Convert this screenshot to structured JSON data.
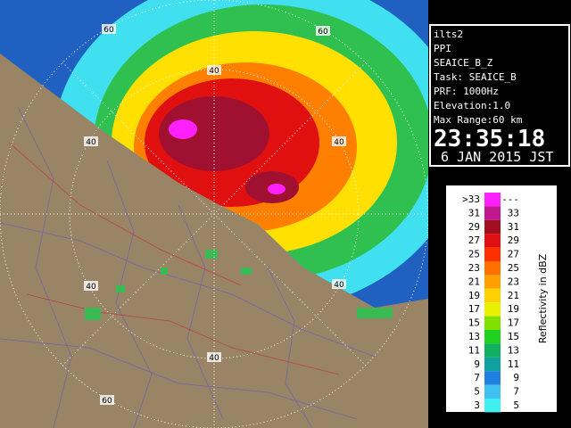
{
  "station": "ilts2",
  "scan_mode": "PPI",
  "product": "SEAICE_B_Z",
  "task": "Task: SEAICE_B",
  "prf": "PRF: 1000Hz",
  "elevation": "Elevation:1.0",
  "max_range": "Max Range:60 km",
  "time": "23:35:18",
  "date": "6 JAN 2015 JST",
  "range_labels": [
    "60",
    "40",
    "60",
    "40",
    "40",
    "40",
    "40",
    "40",
    "60"
  ],
  "legend": {
    "title": "Reflectivity in dBZ",
    "rows": [
      {
        "low": ">33",
        "high": "---",
        "color": "#ff20ff"
      },
      {
        "low": "31",
        "high": "33",
        "color": "#c01890"
      },
      {
        "low": "29",
        "high": "31",
        "color": "#a01020"
      },
      {
        "low": "27",
        "high": "29",
        "color": "#e01010"
      },
      {
        "low": "25",
        "high": "27",
        "color": "#ff3000"
      },
      {
        "low": "23",
        "high": "25",
        "color": "#ff7000"
      },
      {
        "low": "21",
        "high": "23",
        "color": "#ffa000"
      },
      {
        "low": "19",
        "high": "21",
        "color": "#ffd000"
      },
      {
        "low": "17",
        "high": "19",
        "color": "#e8f000"
      },
      {
        "low": "15",
        "high": "17",
        "color": "#80e000"
      },
      {
        "low": "13",
        "high": "15",
        "color": "#20d020"
      },
      {
        "low": "11",
        "high": "13",
        "color": "#10b060"
      },
      {
        "low": "9",
        "high": "11",
        "color": "#10a0a0"
      },
      {
        "low": "7",
        "high": "9",
        "color": "#2080e0"
      },
      {
        "low": "5",
        "high": "7",
        "color": "#40c0f0"
      },
      {
        "low": "3",
        "high": "5",
        "color": "#40f0f0"
      }
    ]
  }
}
